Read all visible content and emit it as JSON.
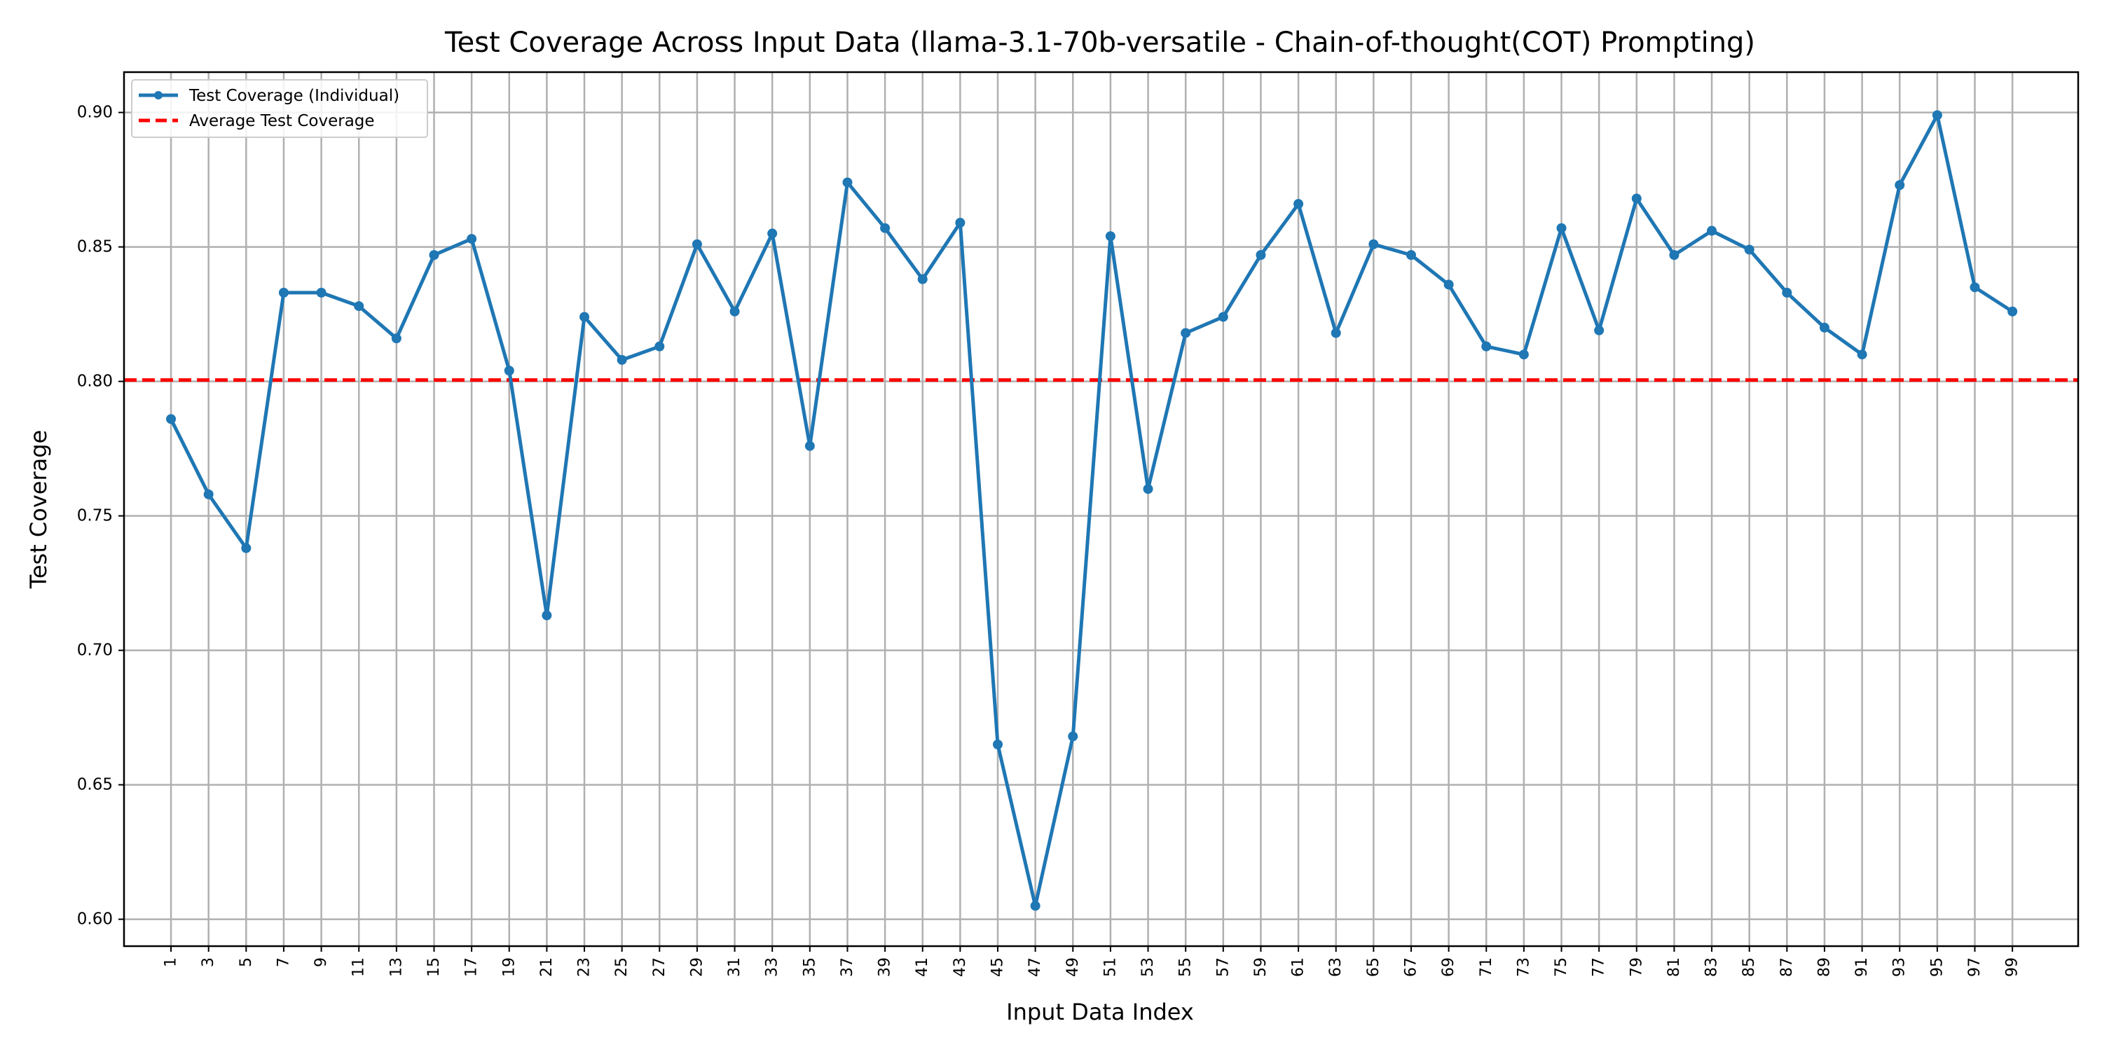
{
  "chart_data": {
    "type": "line",
    "title": "Test Coverage Across Input Data (llama-3.1-70b-versatile - Chain-of-thought(COT) Prompting)",
    "xlabel": "Input Data Index",
    "ylabel": "Test Coverage",
    "xlim": [
      -1.5,
      102.5
    ],
    "ylim": [
      0.59,
      0.915
    ],
    "x_ticks": [
      1,
      3,
      5,
      7,
      9,
      11,
      13,
      15,
      17,
      19,
      21,
      23,
      25,
      27,
      29,
      31,
      33,
      35,
      37,
      39,
      41,
      43,
      45,
      47,
      49,
      51,
      53,
      55,
      57,
      59,
      61,
      63,
      65,
      67,
      69,
      71,
      73,
      75,
      77,
      79,
      81,
      83,
      85,
      87,
      89,
      91,
      93,
      95,
      97,
      99
    ],
    "y_ticks": [
      "0.60",
      "0.65",
      "0.70",
      "0.75",
      "0.80",
      "0.85",
      "0.90"
    ],
    "grid": true,
    "legend_position": "top-left",
    "series": [
      {
        "name": "Test Coverage (Individual)",
        "color": "#1f77b4",
        "style": "solid-with-markers",
        "x": [
          1,
          3,
          5,
          7,
          9,
          11,
          13,
          15,
          17,
          19,
          21,
          23,
          25,
          27,
          29,
          31,
          33,
          35,
          37,
          39,
          41,
          43,
          45,
          47,
          49,
          51,
          53,
          55,
          57,
          59,
          61,
          63,
          65,
          67,
          69,
          71,
          73,
          75,
          77,
          79,
          81,
          83,
          85,
          87,
          89,
          91,
          93,
          95,
          97,
          99
        ],
        "values": [
          0.786,
          0.758,
          0.738,
          0.833,
          0.833,
          0.828,
          0.816,
          0.847,
          0.853,
          0.804,
          0.713,
          0.824,
          0.808,
          0.813,
          0.851,
          0.826,
          0.855,
          0.776,
          0.874,
          0.857,
          0.838,
          0.859,
          0.665,
          0.605,
          0.668,
          0.854,
          0.76,
          0.818,
          0.824,
          0.847,
          0.866,
          0.818,
          0.851,
          0.847,
          0.836,
          0.813,
          0.81,
          0.857,
          0.819,
          0.868,
          0.847,
          0.856,
          0.849,
          0.833,
          0.82,
          0.81,
          0.873,
          0.899,
          0.835,
          0.826
        ]
      },
      {
        "name": "Average Test Coverage",
        "color": "#ff0000",
        "style": "dashed",
        "value": 0.8005
      }
    ]
  }
}
